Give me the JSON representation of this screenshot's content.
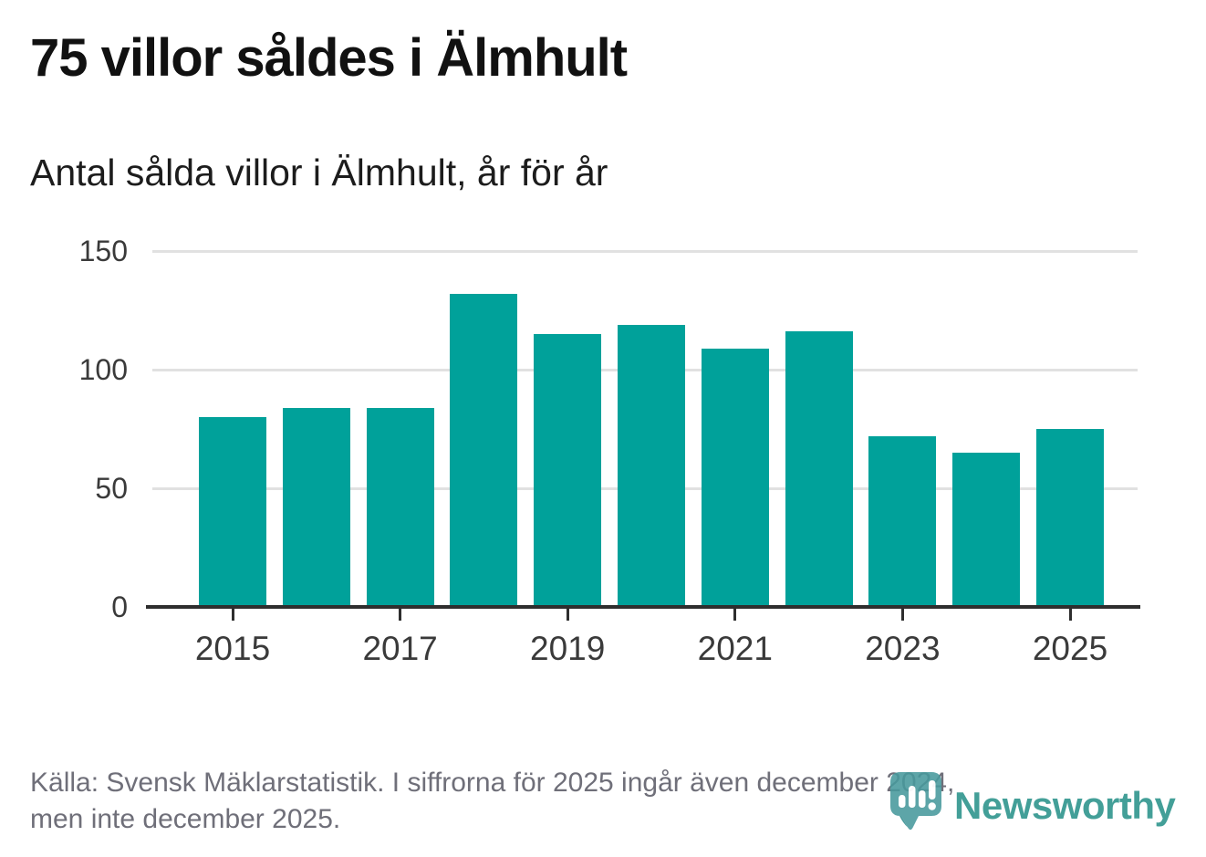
{
  "header": {
    "title": "75 villor såldes i Älmhult",
    "subtitle": "Antal sålda villor i Älmhult, år för år"
  },
  "chart_data": {
    "type": "bar",
    "title": "75 villor såldes i Älmhult",
    "subtitle": "Antal sålda villor i Älmhult, år för år",
    "categories": [
      "2015",
      "2016",
      "2017",
      "2018",
      "2019",
      "2020",
      "2021",
      "2022",
      "2023",
      "2024",
      "2025"
    ],
    "values": [
      80,
      84,
      84,
      132,
      115,
      119,
      109,
      116,
      72,
      65,
      75
    ],
    "xlabel": "",
    "ylabel": "",
    "ylim": [
      0,
      150
    ],
    "yticks": [
      0,
      50,
      100,
      150
    ],
    "xtick_labels": [
      "2015",
      "2017",
      "2019",
      "2021",
      "2023",
      "2025"
    ],
    "grid": "horizontal",
    "legend_position": "none",
    "bar_color": "#00a19a"
  },
  "footer": {
    "source_line1": "Källa: Svensk Mäklarstatistik. I siffrorna för 2025 ingår även december 2024,",
    "source_line2": "men inte december 2025.",
    "brand": "Newsworthy"
  },
  "colors": {
    "bar": "#00a19a",
    "axis": "#2e2e2e",
    "grid": "#e1e1e1",
    "tick_text": "#3a3a3a",
    "footer_text": "#6f6f79",
    "brand_teal": "#399a93",
    "pin_teal": "#47999c",
    "pin_dark": "#2d8a8c"
  }
}
